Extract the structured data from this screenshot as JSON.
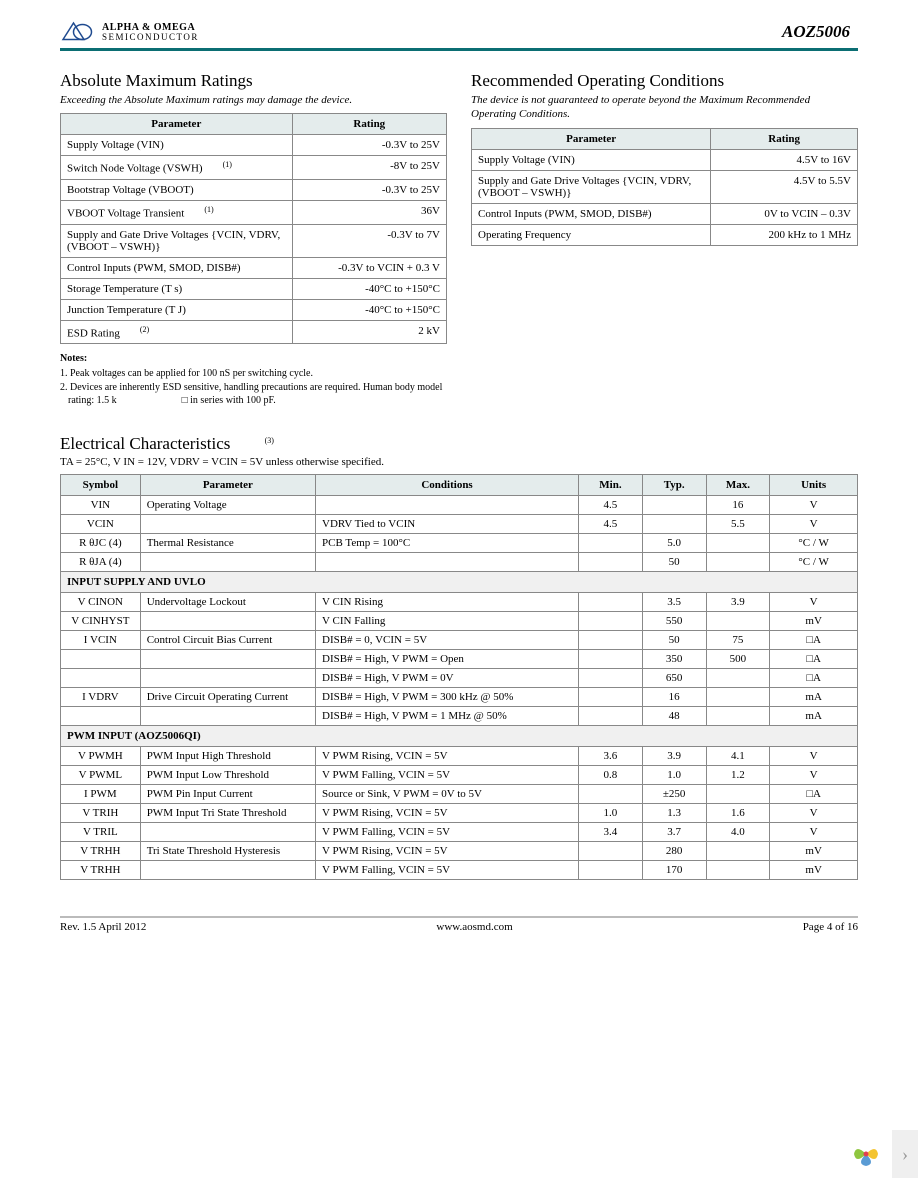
{
  "header": {
    "logo_line1": "ALPHA & OMEGA",
    "logo_line2": "SEMICONDUCTOR",
    "part_number": "AOZ5006"
  },
  "abs_max": {
    "title": "Absolute Maximum Ratings",
    "subtitle": "Exceeding the Absolute Maximum ratings may damage the device.",
    "col1": "Parameter",
    "col2": "Rating",
    "rows": [
      {
        "param": "Supply Voltage (VIN)",
        "rating": "-0.3V to 25V"
      },
      {
        "param": "Switch Node Voltage (VSWH)",
        "sup": "(1)",
        "rating": "-8V to 25V"
      },
      {
        "param": "Bootstrap Voltage (VBOOT)",
        "rating": "-0.3V to 25V"
      },
      {
        "param": "VBOOT Voltage Transient",
        "sup": "(1)",
        "rating": "36V"
      },
      {
        "param": "Supply and Gate Drive Voltages {VCIN, VDRV, (VBOOT – VSWH)}",
        "rating": "-0.3V to 7V"
      },
      {
        "param": "Control Inputs (PWM, SMOD, DISB#)",
        "rating": "-0.3V to VCIN    + 0.3 V"
      },
      {
        "param": "Storage Temperature (T        s)",
        "rating": "-40°C to +150°C"
      },
      {
        "param": "Junction Temperature (T        J)",
        "rating": "-40°C to +150°C"
      },
      {
        "param": "ESD Rating",
        "sup": "(2)",
        "rating": "2 kV"
      }
    ]
  },
  "notes": {
    "head": "Notes:",
    "n1": "1. Peak voltages can be applied for 100 nS per switching cycle.",
    "n2a": "2. Devices are inherently ESD sensitive, handling precautions are required. Human body model rating: 1.5 k",
    "n2b": "□ in series with 100 pF."
  },
  "rec_op": {
    "title": "Recommended Operating Conditions",
    "subtitle": "The device is not guaranteed to operate beyond the Maximum Recommended Operating Conditions.",
    "col1": "Parameter",
    "col2": "Rating",
    "rows": [
      {
        "param": "Supply Voltage (VIN)",
        "rating": "4.5V to 16V"
      },
      {
        "param": "Supply and Gate Drive Voltages {VCIN, VDRV, (VBOOT – VSWH)}",
        "rating": "4.5V to 5.5V"
      },
      {
        "param": "Control Inputs (PWM, SMOD, DISB#)",
        "rating": "0V to VCIN – 0.3V"
      },
      {
        "param": "Operating Frequency",
        "rating": "200 kHz to 1 MHz"
      }
    ]
  },
  "elec": {
    "title": "Electrical Characteristics",
    "title_sup": "(3)",
    "cond": "TA = 25°C, V   IN = 12V, VDRV = VCIN = 5V unless otherwise specified.",
    "headers": [
      "Symbol",
      "Parameter",
      "Conditions",
      "Min.",
      "Typ.",
      "Max.",
      "Units"
    ],
    "rows": [
      {
        "t": "r",
        "sym": "VIN",
        "param": "Operating Voltage",
        "cond": "",
        "min": "4.5",
        "typ": "",
        "max": "16",
        "u": "V"
      },
      {
        "t": "r",
        "sym": "VCIN",
        "param": "",
        "cond": "VDRV Tied to VCIN",
        "min": "4.5",
        "typ": "",
        "max": "5.5",
        "u": "V"
      },
      {
        "t": "r",
        "sym": "R θJC  (4)",
        "param": "Thermal Resistance",
        "cond": "PCB Temp = 100°C",
        "min": "",
        "typ": "5.0",
        "max": "",
        "u": "°C / W"
      },
      {
        "t": "r",
        "sym": "R θJA  (4)",
        "param": "",
        "cond": "",
        "min": "",
        "typ": "50",
        "max": "",
        "u": "°C / W"
      },
      {
        "t": "sec",
        "label": "INPUT SUPPLY AND UVLO"
      },
      {
        "t": "r",
        "sym": "V CINON",
        "param": "Undervoltage         Lockout",
        "cond": "V CIN  Rising",
        "min": "",
        "typ": "3.5",
        "max": "3.9",
        "u": "V"
      },
      {
        "t": "r",
        "sym": "V CINHYST",
        "param": "",
        "cond": "V CIN  Falling",
        "min": "",
        "typ": "550",
        "max": "",
        "u": "mV"
      },
      {
        "t": "r",
        "sym": "I VCIN",
        "param": "Control Circuit Bias Current",
        "cond": "DISB# = 0, VCIN = 5V",
        "min": "",
        "typ": "50",
        "max": "75",
        "u": "□A"
      },
      {
        "t": "r",
        "sym": "",
        "param": "",
        "cond": "DISB# = High, V       PWM  = Open",
        "min": "",
        "typ": "350",
        "max": "500",
        "u": "□A"
      },
      {
        "t": "r",
        "sym": "",
        "param": "",
        "cond": "DISB# = High, V       PWM  = 0V",
        "min": "",
        "typ": "650",
        "max": "",
        "u": "□A"
      },
      {
        "t": "r",
        "sym": "I VDRV",
        "param": "Drive Circuit Operating Current",
        "cond": "DISB# = High, V       PWM  = 300 kHz @ 50%",
        "min": "",
        "typ": "16",
        "max": "",
        "u": "mA"
      },
      {
        "t": "r",
        "sym": "",
        "param": "",
        "cond": "DISB# = High, V       PWM  = 1 MHz @ 50%",
        "min": "",
        "typ": "48",
        "max": "",
        "u": "mA"
      },
      {
        "t": "sec",
        "label": "PWM INPUT (AOZ5006QI)"
      },
      {
        "t": "r",
        "sym": "V PWMH",
        "param": "PWM Input High Threshold",
        "cond": "V PWM  Rising, VCIN = 5V",
        "min": "3.6",
        "typ": "3.9",
        "max": "4.1",
        "u": "V"
      },
      {
        "t": "r",
        "sym": "V PWML",
        "param": "PWM Input Low Threshold",
        "cond": "V PWM  Falling, VCIN = 5V",
        "min": "0.8",
        "typ": "1.0",
        "max": "1.2",
        "u": "V"
      },
      {
        "t": "r",
        "sym": "I PWM",
        "param": "PWM Pin Input Current",
        "cond": "Source or Sink, V           PWM  = 0V to 5V",
        "min": "",
        "typ": "±250",
        "max": "",
        "u": "□A"
      },
      {
        "t": "r",
        "sym": "V TRIH",
        "param": "PWM Input Tri State Threshold",
        "cond": "V PWM  Rising, VCIN = 5V",
        "min": "1.0",
        "typ": "1.3",
        "max": "1.6",
        "u": "V"
      },
      {
        "t": "r",
        "sym": "V TRIL",
        "param": "",
        "cond": "V PWM  Falling, VCIN = 5V",
        "min": "3.4",
        "typ": "3.7",
        "max": "4.0",
        "u": "V"
      },
      {
        "t": "r",
        "sym": "V TRHH",
        "param": "Tri State Threshold Hysteresis",
        "cond": "V PWM  Rising, VCIN = 5V",
        "min": "",
        "typ": "280",
        "max": "",
        "u": "mV"
      },
      {
        "t": "r",
        "sym": "V TRHH",
        "param": "",
        "cond": "V PWM  Falling, VCIN = 5V",
        "min": "",
        "typ": "170",
        "max": "",
        "u": "mV"
      }
    ]
  },
  "footer": {
    "rev": "Rev. 1.5 April 2012",
    "url": "www.aosmd.com",
    "page": "Page 4 of 16"
  },
  "colors": {
    "teal": "#0b6e73",
    "th_bg": "#e4ecec",
    "border": "#888888"
  }
}
